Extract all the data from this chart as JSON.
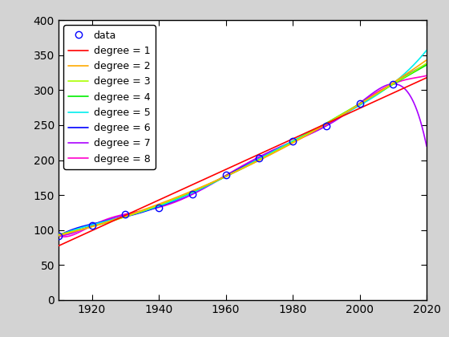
{
  "x_data": [
    1910,
    1920,
    1930,
    1940,
    1950,
    1960,
    1970,
    1980,
    1990,
    2000,
    2010
  ],
  "y_data": [
    92.0,
    106.0,
    123.0,
    132.0,
    151.0,
    179.0,
    203.0,
    227.0,
    249.0,
    281.0,
    309.0
  ],
  "xlim": [
    1910,
    2020
  ],
  "ylim": [
    0,
    400
  ],
  "xticks": [
    1920,
    1940,
    1960,
    1980,
    2000,
    2020
  ],
  "yticks": [
    0,
    50,
    100,
    150,
    200,
    250,
    300,
    350,
    400
  ],
  "degree_colors": {
    "1": "#ff0000",
    "2": "#ffaa00",
    "3": "#aaff00",
    "4": "#00ee00",
    "5": "#00eeee",
    "6": "#0000ff",
    "7": "#aa00ff",
    "8": "#ff00cc"
  },
  "x_fit_min": 1910,
  "x_fit_max": 2020,
  "data_marker": "o",
  "data_marker_color": "#0000ff",
  "data_marker_facecolor": "none",
  "legend_loc": "upper left",
  "fig_width": 5.6,
  "fig_height": 4.2,
  "dpi": 100
}
